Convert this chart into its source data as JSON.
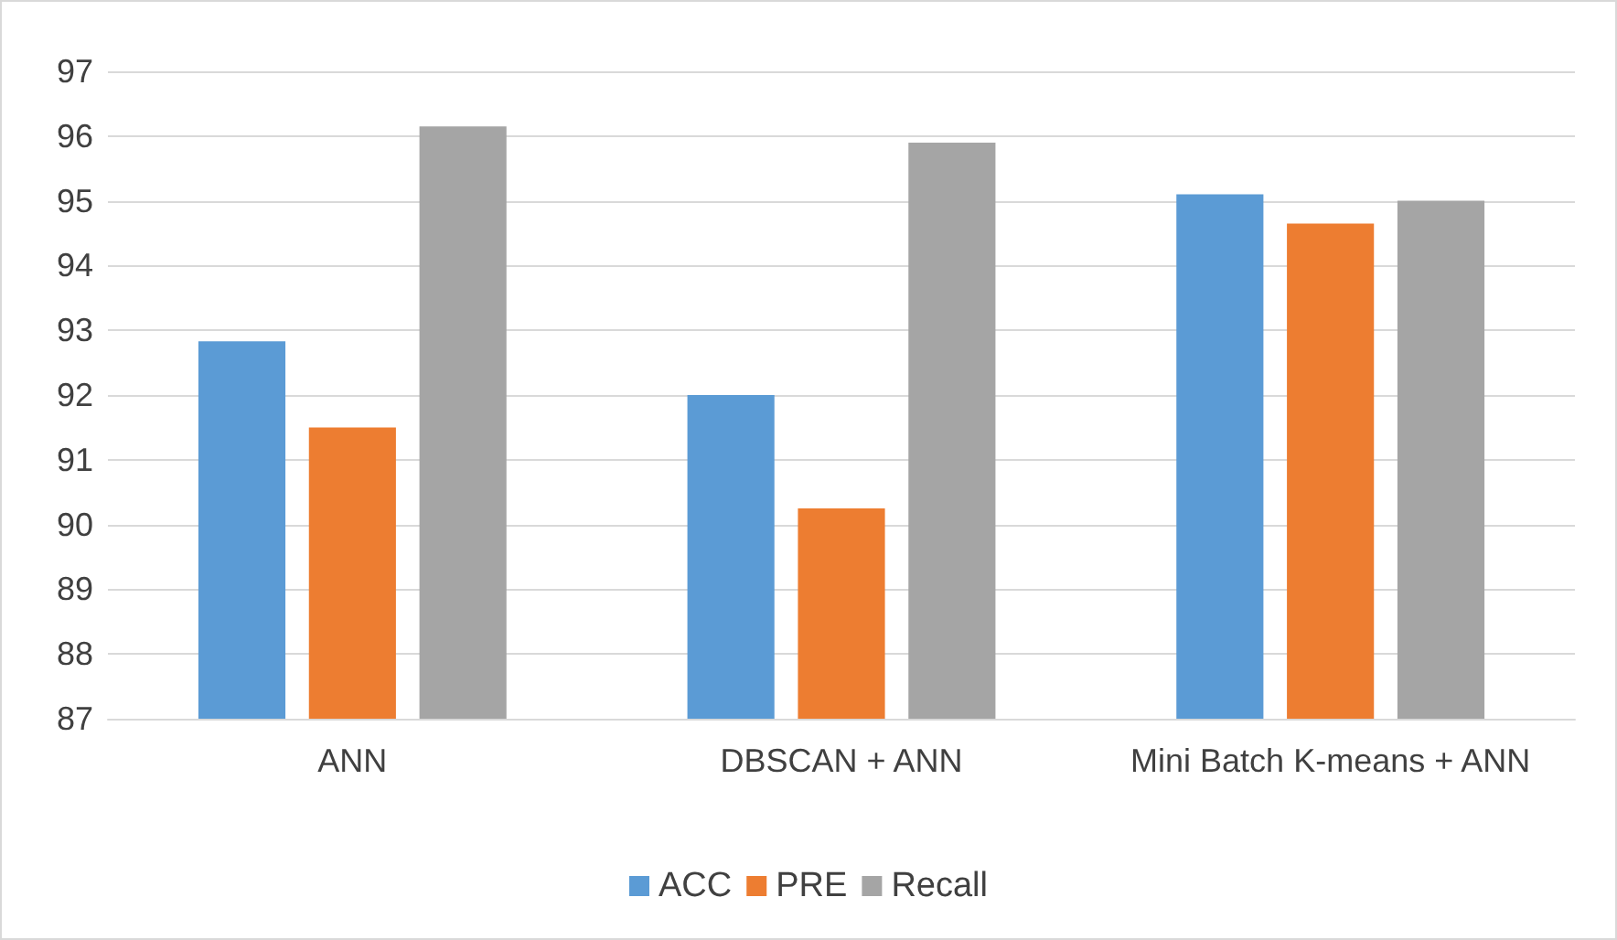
{
  "chart_data": {
    "type": "bar",
    "categories": [
      "ANN",
      "DBSCAN + ANN",
      "Mini Batch K-means + ANN"
    ],
    "series": [
      {
        "name": "ACC",
        "color": "#5b9bd5",
        "values": [
          92.83,
          92.0,
          95.1
        ]
      },
      {
        "name": "PRE",
        "color": "#ed7d31",
        "values": [
          91.5,
          90.25,
          94.65
        ]
      },
      {
        "name": "Recall",
        "color": "#a5a5a5",
        "values": [
          96.15,
          95.9,
          95.0
        ]
      }
    ],
    "ylim": [
      87,
      97
    ],
    "yticks": [
      87,
      88,
      89,
      90,
      91,
      92,
      93,
      94,
      95,
      96,
      97
    ],
    "grid": "y",
    "legend": "bottom"
  }
}
